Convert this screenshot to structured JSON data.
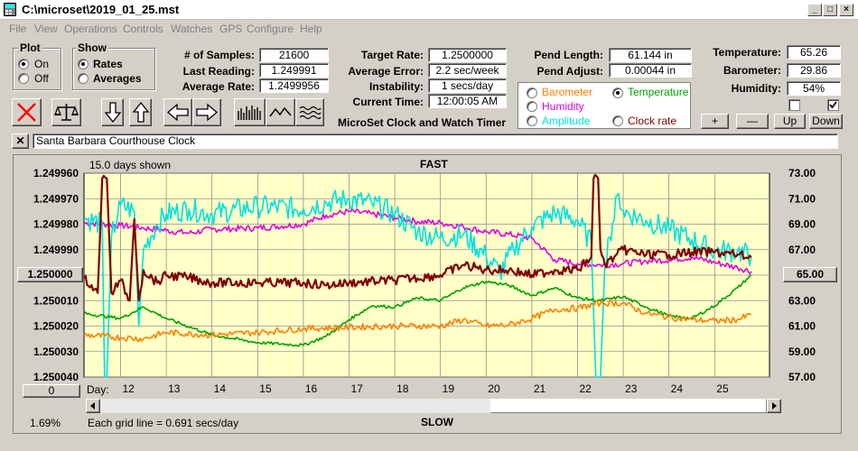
{
  "window": {
    "title": "C:\\microset\\2019_01_25.mst"
  },
  "menu": [
    "File",
    "View",
    "Operations",
    "Controls",
    "Watches",
    "GPS",
    "Configure",
    "Help"
  ],
  "plot_group": {
    "label": "Plot",
    "on": "On",
    "off": "Off",
    "selected": "On"
  },
  "show_group": {
    "label": "Show",
    "rates": "Rates",
    "averages": "Averages",
    "selected": "Rates"
  },
  "stats": {
    "samples_label": "# of Samples:",
    "samples": "21600",
    "last_reading_label": "Last Reading:",
    "last_reading": "1.249991",
    "avg_rate_label": "Average Rate:",
    "avg_rate": "1.2499956"
  },
  "target": {
    "rate_label": "Target Rate:",
    "rate": "1.2500000",
    "avg_error_label": "Average Error:",
    "avg_error": "2.2 sec/week",
    "instability_label": "Instability:",
    "instability": "1 secs/day",
    "current_time_label": "Current Time:",
    "current_time": "12:00:05 AM"
  },
  "app_caption": "MicroSet Clock and Watch Timer",
  "pend": {
    "length_label": "Pend Length:",
    "length": "61.144 in",
    "adjust_label": "Pend Adjust:",
    "adjust": "0.00044 in"
  },
  "env": {
    "temp_label": "Temperature:",
    "temp": "65.26",
    "baro_label": "Barometer:",
    "baro": "29.86",
    "hum_label": "Humidity:",
    "hum": "54%"
  },
  "series_select": {
    "barometer": "Barometer",
    "temperature": "Temperature",
    "humidity": "Humidity",
    "amplitude": "Amplitude",
    "clock_rate": "Clock rate",
    "selected": "Temperature"
  },
  "colors": {
    "barometer": "#ff8000",
    "temperature": "#00a000",
    "humidity": "#e000e0",
    "amplitude": "#00e0e0",
    "clock_rate": "#800000",
    "plot_bg": "#ffffc8"
  },
  "scale_buttons": {
    "plus": "+",
    "minus": "—",
    "up": "Up",
    "down": "Down"
  },
  "checkboxes": {
    "left_checked": false,
    "right_checked": true
  },
  "description": "Santa Barbara Courthouse Clock",
  "plot": {
    "days_shown": "15.0 days shown",
    "top_label": "FAST",
    "bottom_label": "SLOW",
    "grid_note": "Each grid line = 0.691 secs/day",
    "percent": "1.69%",
    "ref_left": "1.250000",
    "ref_right": "65.00",
    "offset_button": "0",
    "day_prefix": "Day:"
  },
  "chart_data": {
    "type": "line",
    "x_label": "Day:",
    "x_ticks": [
      "12",
      "13",
      "14",
      "15",
      "16",
      "17",
      "18",
      "19",
      "20",
      "21",
      "22",
      "23",
      "24",
      "25"
    ],
    "xlim": [
      11.2,
      26.2
    ],
    "y_left_ticks": [
      "1.249960",
      "1.249970",
      "1.249980",
      "1.249990",
      "1.250000",
      "1.250010",
      "1.250020",
      "1.250030",
      "1.250040"
    ],
    "y_left_lim": [
      1.24996,
      1.25004
    ],
    "y_left_inverted": true,
    "y_right_ticks": [
      "73.00",
      "71.00",
      "69.00",
      "67.00",
      "65.00",
      "63.00",
      "61.00",
      "59.00",
      "57.00"
    ],
    "y_right_lim": [
      57,
      73
    ],
    "grid": true,
    "series": [
      {
        "name": "Humidity",
        "color": "#e000e0",
        "x": [
          11.2,
          12.0,
          12.5,
          13.0,
          13.5,
          14.0,
          15.0,
          16.0,
          16.5,
          17.0,
          17.5,
          18.0,
          18.5,
          19.0,
          19.5,
          20.0,
          20.5,
          21.0,
          21.5,
          22.0,
          22.5,
          23.0,
          23.5,
          24.0,
          24.5,
          25.0,
          25.5,
          25.8
        ],
        "y": [
          69.1,
          68.9,
          68.7,
          68.5,
          68.3,
          68.6,
          68.7,
          69.0,
          69.7,
          70.0,
          69.8,
          69.5,
          69.2,
          69.1,
          68.8,
          68.4,
          68.2,
          67.9,
          66.2,
          65.9,
          65.8,
          65.9,
          66.1,
          66.2,
          66.4,
          66.0,
          65.6,
          65.3
        ]
      },
      {
        "name": "Amplitude",
        "color": "#00e0e0",
        "x": [
          11.2,
          11.6,
          11.65,
          11.7,
          11.8,
          12.0,
          12.3,
          12.4,
          12.5,
          12.8,
          13.0,
          13.5,
          14.0,
          15.0,
          16.0,
          16.5,
          17.0,
          17.5,
          18.0,
          18.5,
          19.0,
          19.5,
          20.0,
          20.3,
          20.6,
          21.0,
          21.5,
          22.0,
          22.3,
          22.4,
          22.5,
          22.6,
          22.7,
          22.9,
          23.0,
          23.5,
          24.0,
          24.5,
          25.0,
          25.5,
          25.8
        ],
        "y": [
          69.5,
          69.0,
          57.0,
          57.0,
          68.0,
          70.5,
          70.0,
          61.0,
          67.0,
          69.0,
          69.8,
          70.2,
          69.8,
          70.4,
          70.2,
          70.7,
          71.0,
          70.6,
          69.8,
          68.4,
          67.9,
          68.2,
          66.5,
          65.2,
          67.0,
          68.8,
          69.9,
          69.3,
          67.5,
          57.0,
          57.0,
          66.0,
          68.0,
          71.4,
          70.0,
          69.3,
          68.6,
          67.8,
          66.9,
          66.9,
          66.5
        ]
      },
      {
        "name": "Clock rate",
        "color": "#800000",
        "x": [
          11.2,
          11.5,
          11.6,
          11.7,
          11.8,
          12.0,
          12.2,
          12.3,
          12.4,
          12.5,
          12.8,
          13.0,
          13.5,
          14.0,
          15.0,
          16.0,
          16.5,
          17.0,
          18.0,
          19.0,
          19.5,
          20.0,
          20.5,
          21.0,
          21.5,
          22.0,
          22.3,
          22.35,
          22.45,
          22.5,
          22.6,
          22.8,
          23.0,
          23.5,
          24.0,
          24.5,
          25.0,
          25.5,
          25.8
        ],
        "y": [
          1.250001,
          1.250007,
          1.249962,
          1.249962,
          1.250007,
          1.250002,
          1.25001,
          1.249978,
          1.25001,
          1.249998,
          1.250003,
          1.25,
          1.250001,
          1.250003,
          1.250003,
          1.250003,
          1.250004,
          1.250003,
          1.250002,
          1.25,
          1.249996,
          1.249998,
          1.249998,
          1.25,
          1.249998,
          1.249998,
          1.249993,
          1.249962,
          1.249962,
          1.24999,
          1.249996,
          1.249993,
          1.24999,
          1.249992,
          1.249992,
          1.249991,
          1.249991,
          1.249992,
          1.249993
        ]
      },
      {
        "name": "Temperature",
        "color": "#00a000",
        "x": [
          11.2,
          12.0,
          12.5,
          13.0,
          14.0,
          15.0,
          16.0,
          16.5,
          17.0,
          17.5,
          18.0,
          18.5,
          19.0,
          19.5,
          20.0,
          20.5,
          21.0,
          21.5,
          22.0,
          22.5,
          23.0,
          23.5,
          24.0,
          24.5,
          25.0,
          25.5,
          25.8
        ],
        "y": [
          62.0,
          61.6,
          62.5,
          61.6,
          60.3,
          59.7,
          59.5,
          60.2,
          61.5,
          62.6,
          62.5,
          63.2,
          63.0,
          64.0,
          64.5,
          64.2,
          63.4,
          64.0,
          63.2,
          63.0,
          63.3,
          62.5,
          61.8,
          61.6,
          62.6,
          64.0,
          65.0
        ]
      },
      {
        "name": "Barometer",
        "color": "#ff8000",
        "x": [
          11.2,
          12.0,
          12.5,
          13.0,
          14.0,
          15.0,
          16.0,
          17.0,
          18.0,
          19.0,
          19.5,
          20.0,
          20.5,
          21.0,
          21.5,
          22.0,
          22.5,
          23.0,
          23.5,
          24.0,
          24.5,
          25.0,
          25.5,
          25.8
        ],
        "y": [
          60.3,
          60.1,
          60.0,
          60.5,
          60.3,
          60.5,
          60.8,
          60.9,
          61.0,
          61.0,
          61.5,
          61.0,
          61.1,
          61.6,
          62.3,
          62.4,
          62.8,
          62.8,
          62.0,
          61.7,
          61.5,
          61.4,
          61.5,
          61.9
        ]
      }
    ]
  }
}
